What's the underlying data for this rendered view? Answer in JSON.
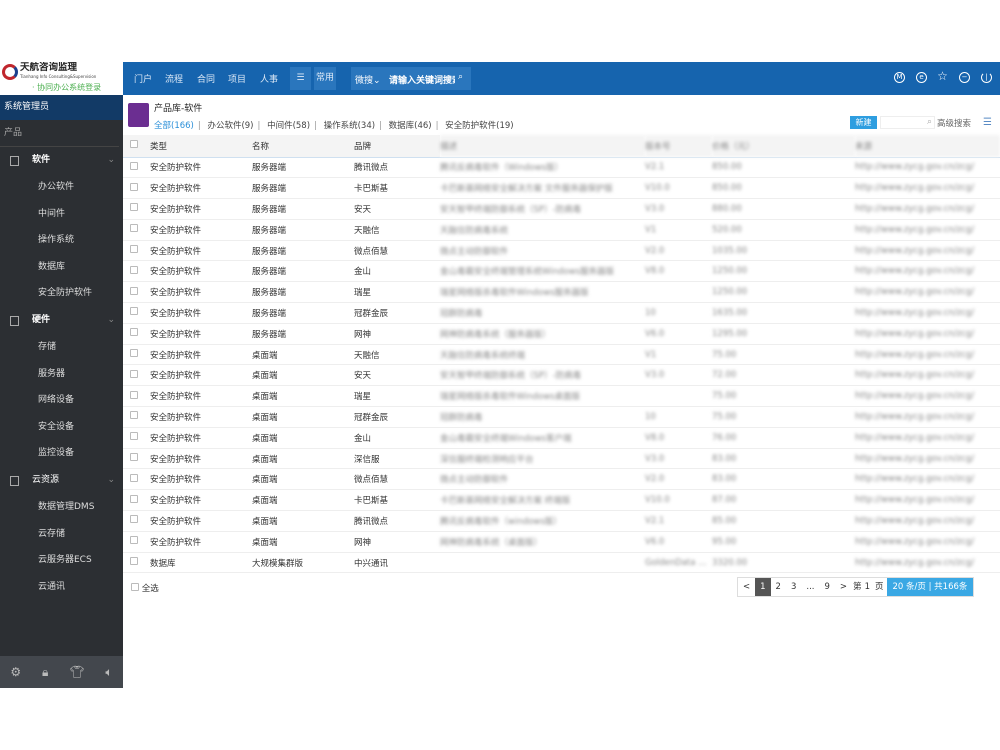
{
  "logo": {
    "name": "天航咨询监理",
    "sub": "Tianhang Info Consulting&Supervision",
    "slogan": "· 协同办公系统登录"
  },
  "topnav": {
    "items": [
      "门户",
      "流程",
      "合同",
      "项目",
      "人事"
    ],
    "menu_icon": "☰",
    "common": "常用",
    "search_scope": "微搜",
    "search_placeholder": "请输入关键词搜索",
    "icons": [
      "m-circle-icon",
      "chat-icon",
      "star-icon",
      "more-icon",
      "power-icon"
    ]
  },
  "sidebar": {
    "user": "系统管理员",
    "section": "产品",
    "groups": [
      {
        "label": "软件",
        "items": [
          "办公软件",
          "中间件",
          "操作系统",
          "数据库",
          "安全防护软件"
        ]
      },
      {
        "label": "硬件",
        "items": [
          "存储",
          "服务器",
          "网络设备",
          "安全设备",
          "监控设备"
        ]
      },
      {
        "label": "云资源",
        "items": [
          "数据管理DMS",
          "云存储",
          "云服务器ECS",
          "云通讯"
        ]
      }
    ],
    "bottom_icons": [
      "gear-icon",
      "lock-icon",
      "shirt-icon",
      "speaker-icon"
    ]
  },
  "page": {
    "title": "产品库-软件",
    "filters": [
      "全部(166)",
      "办公软件(9)",
      "中间件(58)",
      "操作系统(34)",
      "数据库(46)",
      "安全防护软件(19)"
    ],
    "new": "新建",
    "adv_search": "高级搜索"
  },
  "table": {
    "headers": [
      "类型",
      "名称",
      "品牌",
      "描述",
      "版本号",
      "价格（元）",
      "来源"
    ],
    "rows": [
      [
        "安全防护软件",
        "服务器端",
        "腾讯微点",
        "腾讯反病毒软件（Windows版）",
        "V2.1",
        "850.00",
        "http://www.zycg.gov.cn/zcg/"
      ],
      [
        "安全防护软件",
        "服务器端",
        "卡巴斯基",
        "卡巴斯基网络安全解决方案 文件服务器保护版",
        "V10.0",
        "850.00",
        "http://www.zycg.gov.cn/zcg/"
      ],
      [
        "安全防护软件",
        "服务器端",
        "安天",
        "安天智甲终端防御系统（SP）-防病毒",
        "V3.0",
        "880.00",
        "http://www.zycg.gov.cn/zcg/"
      ],
      [
        "安全防护软件",
        "服务器端",
        "天融信",
        "天融信防病毒系统",
        "V1",
        "520.00",
        "http://www.zycg.gov.cn/zcg/"
      ],
      [
        "安全防护软件",
        "服务器端",
        "微点佰慧",
        "微点主动防御软件",
        "V2.0",
        "1035.00",
        "http://www.zycg.gov.cn/zcg/"
      ],
      [
        "安全防护软件",
        "服务器端",
        "金山",
        "金山毒霸安全终端管理系统Windows服务器版",
        "V8.0",
        "1250.00",
        "http://www.zycg.gov.cn/zcg/"
      ],
      [
        "安全防护软件",
        "服务器端",
        "瑞星",
        "瑞星网络版杀毒软件Windows服务器版",
        "",
        "1250.00",
        "http://www.zycg.gov.cn/zcg/"
      ],
      [
        "安全防护软件",
        "服务器端",
        "冠群金辰",
        "冠群防病毒",
        "10",
        "1635.00",
        "http://www.zycg.gov.cn/zcg/"
      ],
      [
        "安全防护软件",
        "服务器端",
        "网神",
        "网神防病毒系统（服务器版）",
        "V6.0",
        "1295.00",
        "http://www.zycg.gov.cn/zcg/"
      ],
      [
        "安全防护软件",
        "桌面端",
        "天融信",
        "天融信防病毒系统终端",
        "V1",
        "75.00",
        "http://www.zycg.gov.cn/zcg/"
      ],
      [
        "安全防护软件",
        "桌面端",
        "安天",
        "安天智甲终端防御系统（SP）-防病毒",
        "V3.0",
        "72.00",
        "http://www.zycg.gov.cn/zcg/"
      ],
      [
        "安全防护软件",
        "桌面端",
        "瑞星",
        "瑞星网络版杀毒软件Windows桌面版",
        "",
        "75.00",
        "http://www.zycg.gov.cn/zcg/"
      ],
      [
        "安全防护软件",
        "桌面端",
        "冠群金辰",
        "冠群防病毒",
        "10",
        "75.00",
        "http://www.zycg.gov.cn/zcg/"
      ],
      [
        "安全防护软件",
        "桌面端",
        "金山",
        "金山毒霸安全终端Windows客户端",
        "V8.0",
        "76.00",
        "http://www.zycg.gov.cn/zcg/"
      ],
      [
        "安全防护软件",
        "桌面端",
        "深信服",
        "深信服终端检测响应平台",
        "V3.0",
        "83.00",
        "http://www.zycg.gov.cn/zcg/"
      ],
      [
        "安全防护软件",
        "桌面端",
        "微点佰慧",
        "微点主动防御软件",
        "V2.0",
        "83.00",
        "http://www.zycg.gov.cn/zcg/"
      ],
      [
        "安全防护软件",
        "桌面端",
        "卡巴斯基",
        "卡巴斯基网络安全解决方案 终端版",
        "V10.0",
        "87.00",
        "http://www.zycg.gov.cn/zcg/"
      ],
      [
        "安全防护软件",
        "桌面端",
        "腾讯微点",
        "腾讯反病毒软件（windows版）",
        "V2.1",
        "85.00",
        "http://www.zycg.gov.cn/zcg/"
      ],
      [
        "安全防护软件",
        "桌面端",
        "网神",
        "网神防病毒系统（桌面版）",
        "V6.0",
        "95.00",
        "http://www.zycg.gov.cn/zcg/"
      ],
      [
        "数据库",
        "大规模集群版",
        "中兴通讯",
        "",
        "GoldenData v...",
        "3320.00",
        "http://www.zycg.gov.cn/zcg/"
      ]
    ]
  },
  "footer": {
    "select_all": "全选",
    "pager": {
      "prev": "<",
      "pages": [
        "1",
        "2",
        "3",
        "...",
        "9"
      ],
      "current": "1",
      "next": ">",
      "goto_prefix": "第",
      "goto_page": "1",
      "goto_suffix": "页",
      "per_page": "20",
      "summary": "条/页 | 共166条"
    }
  }
}
